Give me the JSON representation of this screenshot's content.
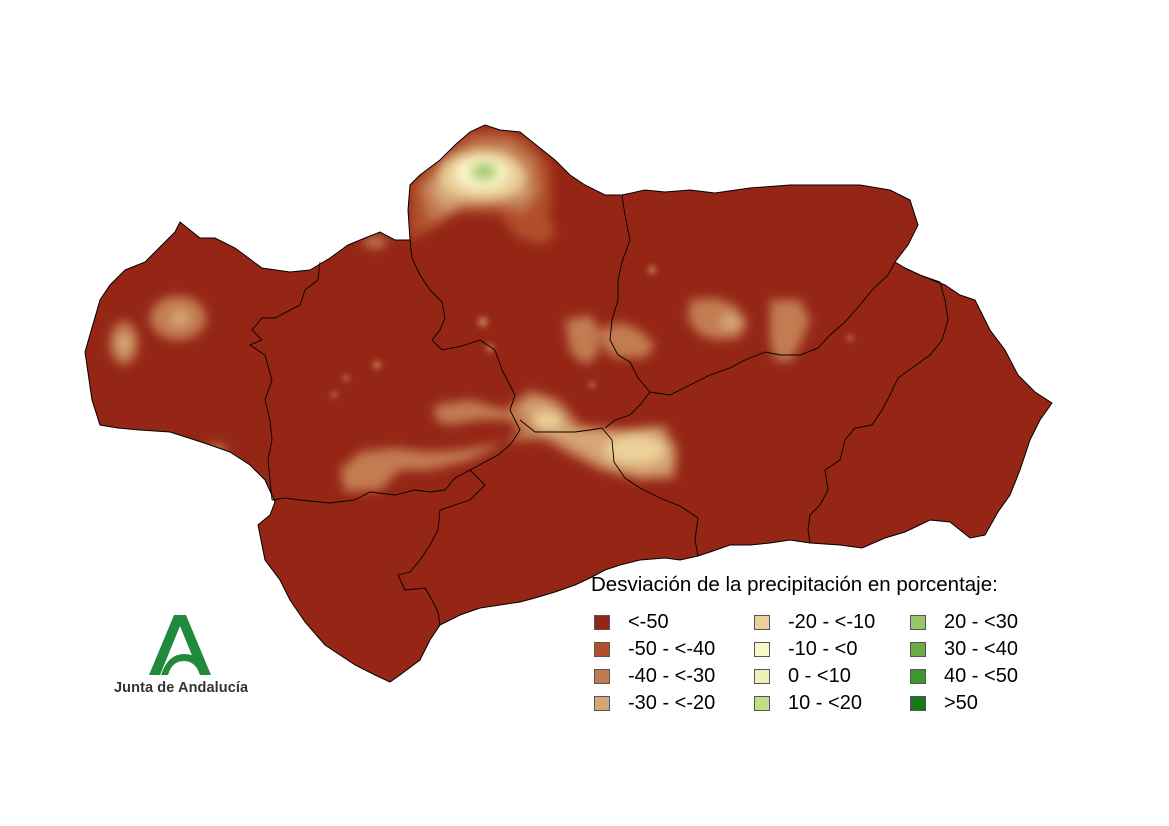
{
  "legend": {
    "title": "Desviación de la precipitación en porcentaje:",
    "items": [
      {
        "label": "<-50",
        "color": "#952616"
      },
      {
        "label": "-50 - <-40",
        "color": "#b04f2c"
      },
      {
        "label": "-40 - <-30",
        "color": "#c27b51"
      },
      {
        "label": "-30 - <-20",
        "color": "#d6a675"
      },
      {
        "label": "-20 - <-10",
        "color": "#ebd098"
      },
      {
        "label": "-10 - <0",
        "color": "#fbf7cd"
      },
      {
        "label": "0 - <10",
        "color": "#eef2ba"
      },
      {
        "label": "10 - <20",
        "color": "#c4dc86"
      },
      {
        "label": "20 - <30",
        "color": "#98c76a"
      },
      {
        "label": "30 - <40",
        "color": "#6aad44"
      },
      {
        "label": "40 - <50",
        "color": "#3e9630"
      },
      {
        "label": ">50",
        "color": "#17781a"
      }
    ]
  },
  "logo": {
    "text": "Junta de Andalucía",
    "color": "#1f8a3c",
    "icon": "junta-andalucia-a-logo"
  },
  "map": {
    "background_class_color": "#952616",
    "boundary_color": "#000000"
  }
}
